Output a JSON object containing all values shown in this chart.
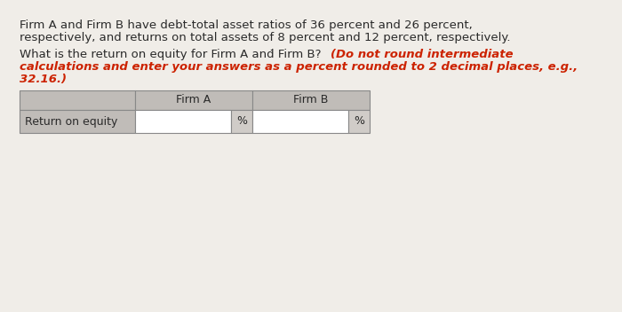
{
  "bg_color": "#f0ede8",
  "text_color": "#2a2a2a",
  "red_color": "#cc2200",
  "p1_line1": "Firm A and Firm B have debt-total asset ratios of 36 percent and 26 percent,",
  "p1_line2": "respectively, and returns on total assets of 8 percent and 12 percent, respectively.",
  "p2_black": "What is the return on equity for Firm A anḋ Firm B? ",
  "p2_red_line1": "(Do not round intermediate",
  "p2_red_line2": "calculations and enter your answers as a percent rounded to 2 decimal places, e.g.,",
  "p2_red_line3": "32.16.)",
  "row_label": "Return on equity",
  "firm_a": "Firm A",
  "firm_b": "Firm B",
  "percent": "%",
  "font_size": 9.5,
  "font_size_small": 9.0,
  "header_bg": "#c0bcb8",
  "cell_bg": "#ffffff",
  "pct_bg": "#d0ccc8",
  "border_color": "#888888"
}
